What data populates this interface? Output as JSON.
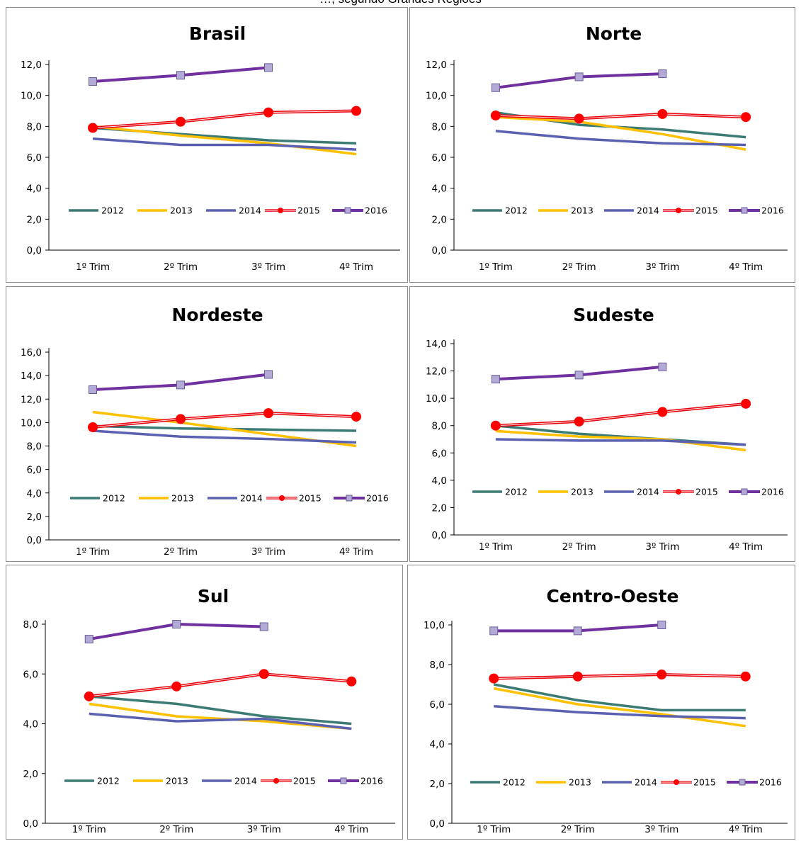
{
  "caption": "…, segundo Grandes Regiões",
  "legend_entries": [
    "2012",
    "2013",
    "2014",
    "2015",
    "2016"
  ],
  "series_colors": {
    "2012": "#3b7b74",
    "2013": "#ffc000",
    "2014": "#5b61b0",
    "2015": "#e8000b",
    "2016": "#7030a0"
  },
  "marker_colors": {
    "2015": "#ff0000",
    "2016_fill": "#b4aad6",
    "2016_stroke": "#6a5a9a"
  },
  "chart_data": [
    {
      "type": "line",
      "title": "Brasil",
      "categories": [
        "1º Trim",
        "2º Trim",
        "3º Trim",
        "4º Trim"
      ],
      "ylim": [
        0,
        12
      ],
      "yticks": [
        "0,0",
        "2,0",
        "4,0",
        "6,0",
        "8,0",
        "10,0",
        "12,0"
      ],
      "legend": "inside-bottom",
      "grid": false,
      "series": [
        {
          "name": "2012",
          "values": [
            7.9,
            7.5,
            7.1,
            6.9
          ]
        },
        {
          "name": "2013",
          "values": [
            8.0,
            7.4,
            6.9,
            6.2
          ]
        },
        {
          "name": "2014",
          "values": [
            7.2,
            6.8,
            6.8,
            6.5
          ]
        },
        {
          "name": "2015",
          "values": [
            7.9,
            8.3,
            8.9,
            9.0
          ]
        },
        {
          "name": "2016",
          "values": [
            10.9,
            11.3,
            11.8,
            null
          ]
        }
      ]
    },
    {
      "type": "line",
      "title": "Norte",
      "categories": [
        "1º Trim",
        "2º Trim",
        "3º Trim",
        "4º Trim"
      ],
      "ylim": [
        0,
        12
      ],
      "yticks": [
        "0,0",
        "2,0",
        "4,0",
        "6,0",
        "8,0",
        "10,0",
        "12,0"
      ],
      "legend": "inside-bottom",
      "grid": false,
      "series": [
        {
          "name": "2012",
          "values": [
            8.9,
            8.1,
            7.8,
            7.3
          ]
        },
        {
          "name": "2013",
          "values": [
            8.6,
            8.3,
            7.5,
            6.5
          ]
        },
        {
          "name": "2014",
          "values": [
            7.7,
            7.2,
            6.9,
            6.8
          ]
        },
        {
          "name": "2015",
          "values": [
            8.7,
            8.5,
            8.8,
            8.6
          ]
        },
        {
          "name": "2016",
          "values": [
            10.5,
            11.2,
            11.4,
            null
          ]
        }
      ]
    },
    {
      "type": "line",
      "title": "Nordeste",
      "categories": [
        "1º Trim",
        "2º Trim",
        "3º Trim",
        "4º Trim"
      ],
      "ylim": [
        0,
        16
      ],
      "yticks": [
        "0,0",
        "2,0",
        "4,0",
        "6,0",
        "8,0",
        "10,0",
        "12,0",
        "14,0",
        "16,0"
      ],
      "legend": "inside-bottom",
      "grid": false,
      "series": [
        {
          "name": "2012",
          "values": [
            9.7,
            9.5,
            9.4,
            9.3
          ]
        },
        {
          "name": "2013",
          "values": [
            10.9,
            10.0,
            9.0,
            8.0
          ]
        },
        {
          "name": "2014",
          "values": [
            9.3,
            8.8,
            8.6,
            8.3
          ]
        },
        {
          "name": "2015",
          "values": [
            9.6,
            10.3,
            10.8,
            10.5
          ]
        },
        {
          "name": "2016",
          "values": [
            12.8,
            13.2,
            14.1,
            null
          ]
        }
      ]
    },
    {
      "type": "line",
      "title": "Sudeste",
      "categories": [
        "1º Trim",
        "2º Trim",
        "3º Trim",
        "4º Trim"
      ],
      "ylim": [
        0,
        14
      ],
      "yticks": [
        "0,0",
        "2,0",
        "4,0",
        "6,0",
        "8,0",
        "10,0",
        "12,0",
        "14,0"
      ],
      "legend": "inside-bottom",
      "grid": false,
      "series": [
        {
          "name": "2012",
          "values": [
            8.0,
            7.4,
            7.0,
            6.6
          ]
        },
        {
          "name": "2013",
          "values": [
            7.6,
            7.2,
            7.0,
            6.2
          ]
        },
        {
          "name": "2014",
          "values": [
            7.0,
            6.9,
            6.9,
            6.6
          ]
        },
        {
          "name": "2015",
          "values": [
            8.0,
            8.3,
            9.0,
            9.6
          ]
        },
        {
          "name": "2016",
          "values": [
            11.4,
            11.7,
            12.3,
            null
          ]
        }
      ]
    },
    {
      "type": "line",
      "title": "Sul",
      "categories": [
        "1º Trim",
        "2º Trim",
        "3º Trim",
        "4º Trim"
      ],
      "ylim": [
        0,
        8
      ],
      "yticks": [
        "0,0",
        "2,0",
        "4,0",
        "6,0",
        "8,0"
      ],
      "legend": "inside-bottom",
      "grid": false,
      "series": [
        {
          "name": "2012",
          "values": [
            5.1,
            4.8,
            4.3,
            4.0
          ]
        },
        {
          "name": "2013",
          "values": [
            4.8,
            4.3,
            4.1,
            3.8
          ]
        },
        {
          "name": "2014",
          "values": [
            4.4,
            4.1,
            4.2,
            3.8
          ]
        },
        {
          "name": "2015",
          "values": [
            5.1,
            5.5,
            6.0,
            5.7
          ]
        },
        {
          "name": "2016",
          "values": [
            7.4,
            8.0,
            7.9,
            null
          ]
        }
      ]
    },
    {
      "type": "line",
      "title": "Centro-Oeste",
      "categories": [
        "1º Trim",
        "2º Trim",
        "3º Trim",
        "4º Trim"
      ],
      "ylim": [
        0,
        10
      ],
      "yticks": [
        "0,0",
        "2,0",
        "4,0",
        "6,0",
        "8,0",
        "10,0"
      ],
      "legend": "inside-bottom",
      "grid": false,
      "series": [
        {
          "name": "2012",
          "values": [
            7.0,
            6.2,
            5.7,
            5.7
          ]
        },
        {
          "name": "2013",
          "values": [
            6.8,
            6.0,
            5.5,
            4.9
          ]
        },
        {
          "name": "2014",
          "values": [
            5.9,
            5.6,
            5.4,
            5.3
          ]
        },
        {
          "name": "2015",
          "values": [
            7.3,
            7.4,
            7.5,
            7.4
          ]
        },
        {
          "name": "2016",
          "values": [
            9.7,
            9.7,
            10.0,
            null
          ]
        }
      ]
    }
  ]
}
